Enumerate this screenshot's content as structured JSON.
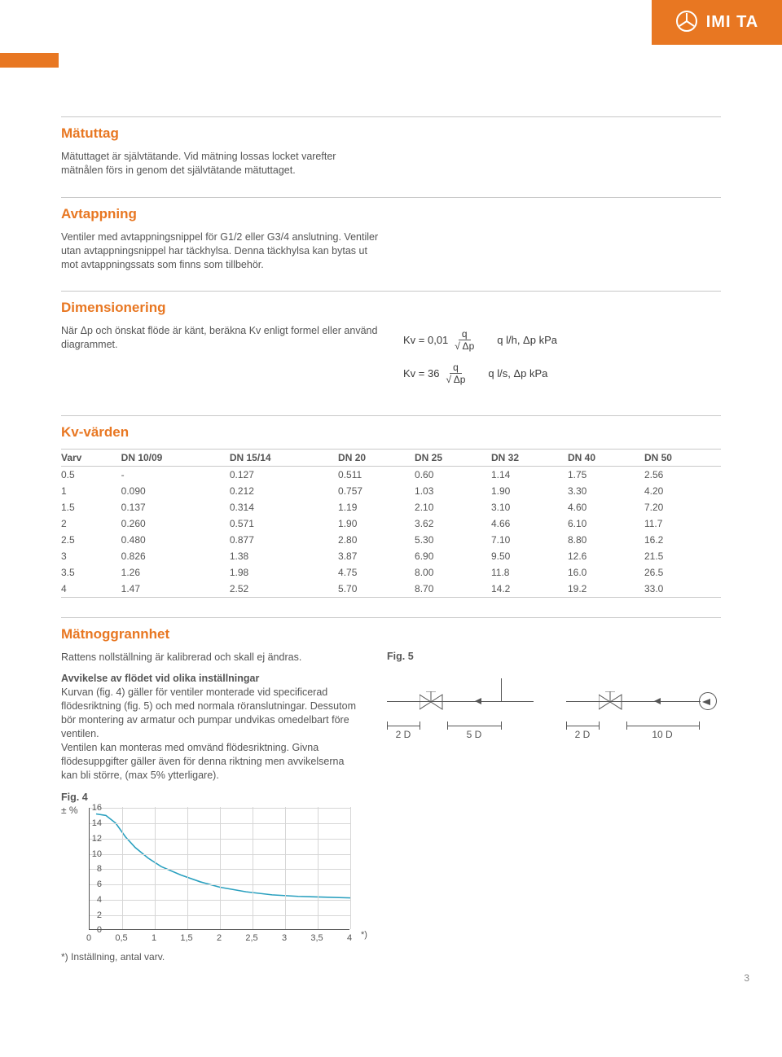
{
  "brand": {
    "name": "IMI TA"
  },
  "sections": {
    "matuttag": {
      "title": "Mätuttag",
      "body": "Mätuttaget är självtätande. Vid mätning lossas locket varefter mätnålen förs in genom det självtätande mätuttaget."
    },
    "avtappning": {
      "title": "Avtappning",
      "body": "Ventiler med avtappningsnippel för G1/2 eller G3/4 anslutning. Ventiler utan avtappningsnippel har täckhylsa. Denna täckhylsa kan bytas ut mot avtappningssats som finns som tillbehör."
    },
    "dimensionering": {
      "title": "Dimensionering",
      "body": "När Δp och önskat flöde är känt, beräkna Kv enligt formel eller använd diagrammet.",
      "formula1_lhs": "Kv = 0,01",
      "formula2_lhs": "Kv = 36",
      "frac_num": "q",
      "frac_den": "√ Δp",
      "formula1_unit": "q l/h, Δp kPa",
      "formula2_unit": "q l/s, Δp kPa"
    },
    "kvvarden": {
      "title": "Kv-värden"
    },
    "matnoggrannhet": {
      "title": "Mätnoggrannhet",
      "intro": "Rattens nollställning är kalibrerad och skall ej ändras.",
      "subheading": "Avvikelse av flödet vid olika inställningar",
      "body": "Kurvan (fig. 4) gäller för ventiler monterade vid specificerad flödesriktning (fig. 5) och med normala röranslutningar. Dessutom bör montering av armatur och pumpar undvikas omedelbart före ventilen.\nVentilen kan monteras med omvänd flödesriktning. Givna flödesuppgifter gäller även för denna riktning men avvikelserna kan bli större, (max 5% ytterligare)."
    }
  },
  "fig5": {
    "label": "Fig. 5",
    "d1a": "2 D",
    "d1b": "5 D",
    "d2a": "2 D",
    "d2b": "10 D"
  },
  "fig4": {
    "label": "Fig. 4",
    "y_prefix": "± %",
    "y_ticks": [
      "0",
      "2",
      "4",
      "6",
      "8",
      "10",
      "12",
      "14",
      "16"
    ],
    "x_ticks": [
      "0",
      "0,5",
      "1",
      "1,5",
      "2",
      "2,5",
      "3",
      "3,5",
      "4"
    ],
    "x_star": "*)",
    "footnote": "*) Inställning, antal varv.",
    "line_color": "#2aa0bf",
    "grid_color": "#d6d6d6",
    "axis_color": "#555555",
    "xlim": [
      0,
      4
    ],
    "ylim": [
      0,
      16
    ],
    "curve_points": [
      [
        0.1,
        15.2
      ],
      [
        0.25,
        15.0
      ],
      [
        0.4,
        14.0
      ],
      [
        0.55,
        12.2
      ],
      [
        0.7,
        10.8
      ],
      [
        0.9,
        9.4
      ],
      [
        1.1,
        8.3
      ],
      [
        1.4,
        7.2
      ],
      [
        1.7,
        6.3
      ],
      [
        2.0,
        5.6
      ],
      [
        2.4,
        5.0
      ],
      [
        2.8,
        4.6
      ],
      [
        3.2,
        4.4
      ],
      [
        3.6,
        4.3
      ],
      [
        4.0,
        4.2
      ]
    ]
  },
  "kv_table": {
    "columns": [
      "Varv",
      "DN 10/09",
      "DN 15/14",
      "DN 20",
      "DN 25",
      "DN 32",
      "DN 40",
      "DN 50"
    ],
    "rows": [
      [
        "0.5",
        "-",
        "0.127",
        "0.511",
        "0.60",
        "1.14",
        "1.75",
        "2.56"
      ],
      [
        "1",
        "0.090",
        "0.212",
        "0.757",
        "1.03",
        "1.90",
        "3.30",
        "4.20"
      ],
      [
        "1.5",
        "0.137",
        "0.314",
        "1.19",
        "2.10",
        "3.10",
        "4.60",
        "7.20"
      ],
      [
        "2",
        "0.260",
        "0.571",
        "1.90",
        "3.62",
        "4.66",
        "6.10",
        "11.7"
      ],
      [
        "2.5",
        "0.480",
        "0.877",
        "2.80",
        "5.30",
        "7.10",
        "8.80",
        "16.2"
      ],
      [
        "3",
        "0.826",
        "1.38",
        "3.87",
        "6.90",
        "9.50",
        "12.6",
        "21.5"
      ],
      [
        "3.5",
        "1.26",
        "1.98",
        "4.75",
        "8.00",
        "11.8",
        "16.0",
        "26.5"
      ],
      [
        "4",
        "1.47",
        "2.52",
        "5.70",
        "8.70",
        "14.2",
        "19.2",
        "33.0"
      ]
    ]
  },
  "page_number": "3"
}
